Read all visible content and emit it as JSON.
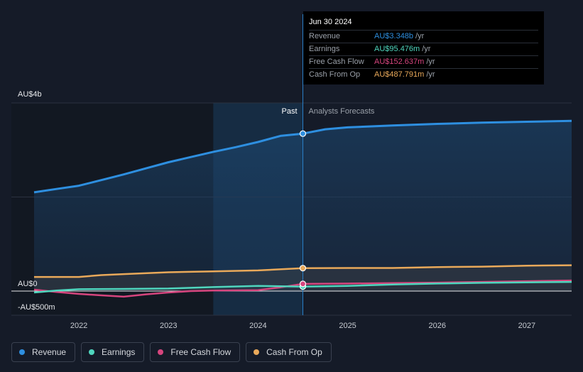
{
  "chart_data": {
    "type": "line",
    "title": "",
    "xlabel": "",
    "ylabel": "",
    "x_ticks": [
      "2022",
      "2023",
      "2024",
      "2025",
      "2026",
      "2027"
    ],
    "y_labels": {
      "top": "AU$4b",
      "zero": "AU$0",
      "bottom": "-AU$500m"
    },
    "ylim": [
      -500,
      4000
    ],
    "xlim": [
      2021.5,
      2027.5
    ],
    "past_label": "Past",
    "forecast_label": "Analysts Forecasts",
    "divider_x": 2024.5,
    "highlight_start_x": 2023.5,
    "series": [
      {
        "name": "Revenue",
        "color": "#2e8fe0",
        "points": [
          [
            2021.5,
            2100
          ],
          [
            2021.75,
            2170
          ],
          [
            2022.0,
            2240
          ],
          [
            2022.25,
            2360
          ],
          [
            2022.5,
            2480
          ],
          [
            2022.75,
            2610
          ],
          [
            2023.0,
            2740
          ],
          [
            2023.25,
            2850
          ],
          [
            2023.5,
            2960
          ],
          [
            2023.75,
            3060
          ],
          [
            2024.0,
            3170
          ],
          [
            2024.25,
            3300
          ],
          [
            2024.5,
            3348
          ],
          [
            2024.75,
            3440
          ],
          [
            2025.0,
            3480
          ],
          [
            2025.5,
            3520
          ],
          [
            2026.0,
            3555
          ],
          [
            2026.5,
            3580
          ],
          [
            2027.0,
            3600
          ],
          [
            2027.5,
            3620
          ]
        ]
      },
      {
        "name": "Earnings",
        "color": "#4fd6be",
        "points": [
          [
            2021.5,
            -30
          ],
          [
            2021.75,
            10
          ],
          [
            2022.0,
            40
          ],
          [
            2022.5,
            45
          ],
          [
            2023.0,
            55
          ],
          [
            2023.5,
            85
          ],
          [
            2024.0,
            110
          ],
          [
            2024.5,
            95.476
          ],
          [
            2025.0,
            110
          ],
          [
            2025.5,
            140
          ],
          [
            2026.0,
            160
          ],
          [
            2026.5,
            175
          ],
          [
            2027.0,
            185
          ],
          [
            2027.5,
            195
          ]
        ]
      },
      {
        "name": "Free Cash Flow",
        "color": "#d6457e",
        "points": [
          [
            2021.5,
            30
          ],
          [
            2021.75,
            -20
          ],
          [
            2022.0,
            -60
          ],
          [
            2022.25,
            -90
          ],
          [
            2022.5,
            -120
          ],
          [
            2022.75,
            -70
          ],
          [
            2023.0,
            -30
          ],
          [
            2023.25,
            0
          ],
          [
            2023.5,
            10
          ],
          [
            2024.0,
            20
          ],
          [
            2024.25,
            80
          ],
          [
            2024.5,
            152.637
          ],
          [
            2025.0,
            160
          ],
          [
            2025.5,
            170
          ],
          [
            2026.0,
            180
          ],
          [
            2026.5,
            195
          ],
          [
            2027.0,
            210
          ],
          [
            2027.5,
            225
          ]
        ]
      },
      {
        "name": "Cash From Op",
        "color": "#e9a95a",
        "points": [
          [
            2021.5,
            300
          ],
          [
            2022.0,
            300
          ],
          [
            2022.25,
            340
          ],
          [
            2022.5,
            360
          ],
          [
            2023.0,
            400
          ],
          [
            2023.5,
            420
          ],
          [
            2024.0,
            440
          ],
          [
            2024.5,
            487.791
          ],
          [
            2025.0,
            490
          ],
          [
            2025.5,
            490
          ],
          [
            2026.0,
            510
          ],
          [
            2026.5,
            520
          ],
          [
            2027.0,
            540
          ],
          [
            2027.5,
            550
          ]
        ]
      }
    ]
  },
  "tooltip": {
    "date": "Jun 30 2024",
    "rows": [
      {
        "label": "Revenue",
        "value": "AU$3.348b",
        "unit": "/yr",
        "color": "#2e8fe0"
      },
      {
        "label": "Earnings",
        "value": "AU$95.476m",
        "unit": "/yr",
        "color": "#4fd6be"
      },
      {
        "label": "Free Cash Flow",
        "value": "AU$152.637m",
        "unit": "/yr",
        "color": "#d6457e"
      },
      {
        "label": "Cash From Op",
        "value": "AU$487.791m",
        "unit": "/yr",
        "color": "#e9a95a"
      }
    ]
  },
  "legend": [
    {
      "label": "Revenue",
      "color": "#2e8fe0"
    },
    {
      "label": "Earnings",
      "color": "#4fd6be"
    },
    {
      "label": "Free Cash Flow",
      "color": "#d6457e"
    },
    {
      "label": "Cash From Op",
      "color": "#e9a95a"
    }
  ]
}
